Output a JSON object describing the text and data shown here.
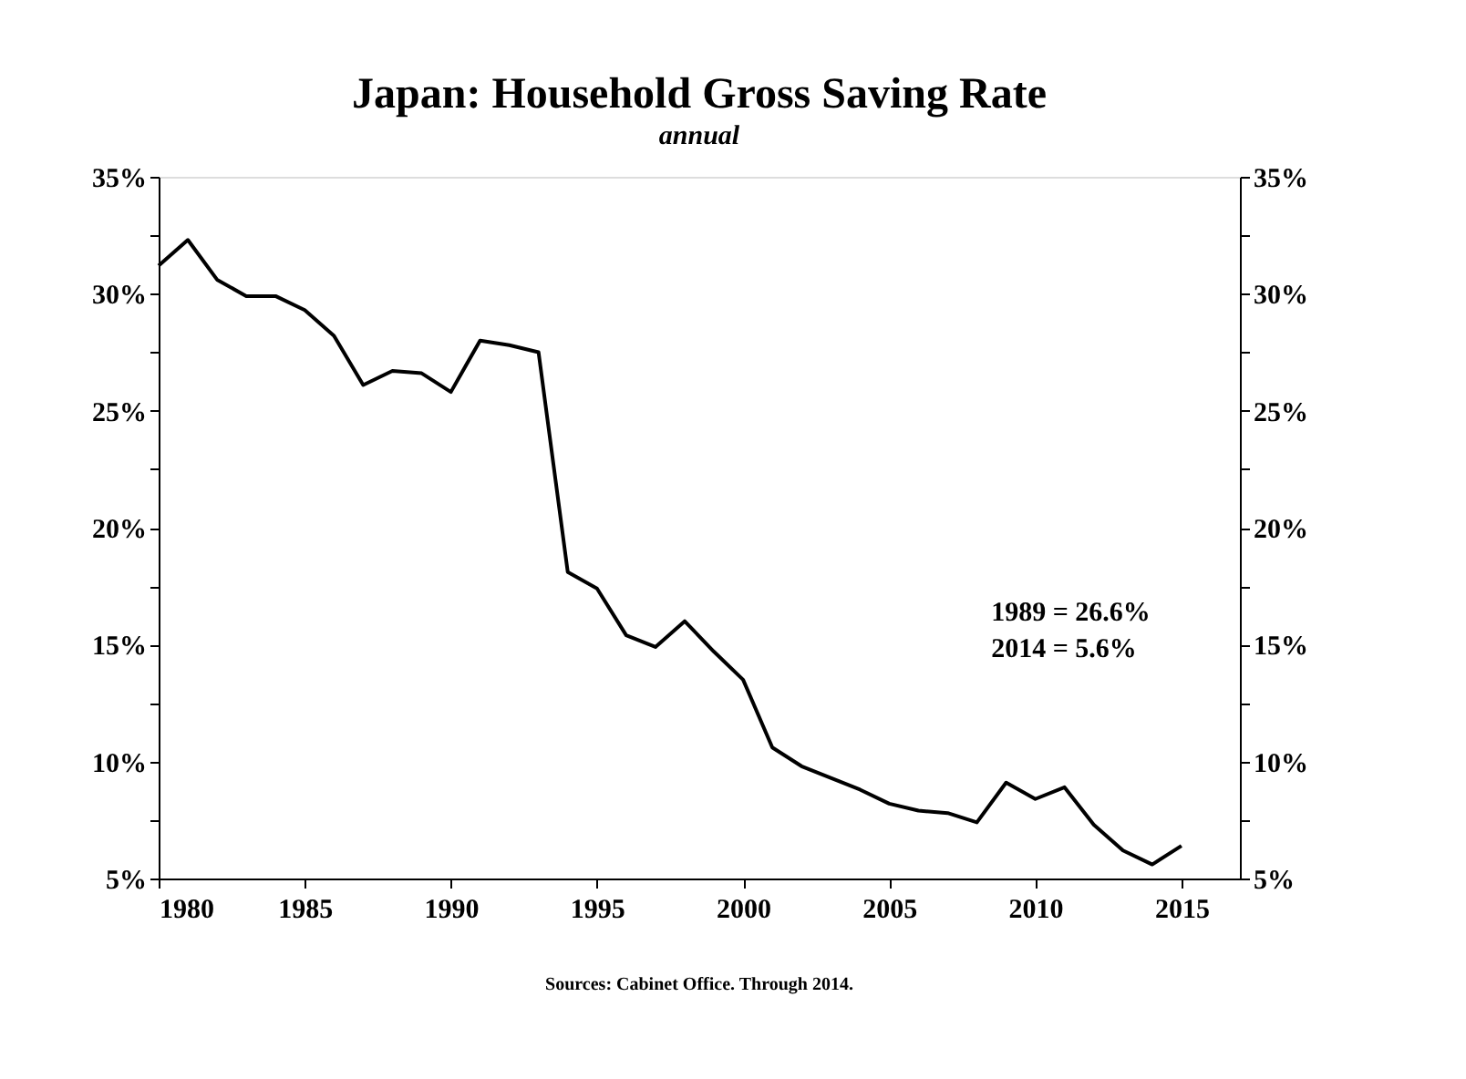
{
  "chart_data": {
    "type": "line",
    "title": "Japan: Household Gross Saving Rate",
    "subtitle": "annual",
    "x": [
      1980,
      1981,
      1982,
      1983,
      1984,
      1985,
      1986,
      1987,
      1988,
      1989,
      1990,
      1991,
      1992,
      1993,
      1994,
      1995,
      1996,
      1997,
      1998,
      1999,
      2000,
      2001,
      2002,
      2003,
      2004,
      2005,
      2006,
      2007,
      2008,
      2009,
      2010,
      2011,
      2012,
      2013,
      2014,
      2015
    ],
    "series": [
      {
        "color": "#000000",
        "values": [
          31.2,
          32.3,
          30.6,
          29.9,
          29.9,
          29.3,
          28.2,
          26.1,
          26.7,
          26.6,
          25.8,
          28.0,
          27.8,
          27.5,
          18.1,
          17.4,
          15.4,
          14.9,
          16.0,
          14.7,
          13.5,
          10.6,
          9.8,
          9.3,
          8.8,
          8.2,
          7.9,
          7.8,
          7.4,
          9.1,
          8.4,
          8.9,
          7.3,
          6.2,
          5.6,
          6.4
        ]
      }
    ],
    "xlim": [
      1980,
      2017
    ],
    "xticks": [
      1980,
      1985,
      1990,
      1995,
      2000,
      2005,
      2010,
      2015
    ],
    "ylim": [
      5,
      35
    ],
    "yticks": [
      {
        "value": 5,
        "label": "5%"
      },
      {
        "value": 7.5,
        "label": null
      },
      {
        "value": 10,
        "label": "10%"
      },
      {
        "value": 12.5,
        "label": null
      },
      {
        "value": 15,
        "label": "15%"
      },
      {
        "value": 17.5,
        "label": null
      },
      {
        "value": 20,
        "label": "20%"
      },
      {
        "value": 22.5,
        "label": null
      },
      {
        "value": 25,
        "label": "25%"
      },
      {
        "value": 27.5,
        "label": null
      },
      {
        "value": 30,
        "label": "30%"
      },
      {
        "value": 32.5,
        "label": null
      },
      {
        "value": 35,
        "label": "35%"
      }
    ],
    "y2lim": [
      5,
      35
    ],
    "y2ticks": [
      {
        "value": 5,
        "label": "5%"
      },
      {
        "value": 7.5,
        "label": null
      },
      {
        "value": 10,
        "label": "10%"
      },
      {
        "value": 12.5,
        "label": null
      },
      {
        "value": 15,
        "label": "15%"
      },
      {
        "value": 17.5,
        "label": null
      },
      {
        "value": 20,
        "label": "20%"
      },
      {
        "value": 22.5,
        "label": null
      },
      {
        "value": 25,
        "label": "25%"
      },
      {
        "value": 27.5,
        "label": null
      },
      {
        "value": 30,
        "label": "30%"
      },
      {
        "value": 32.5,
        "label": null
      },
      {
        "value": 35,
        "label": "35%"
      }
    ],
    "annotations": [
      "1989 = 26.6%",
      "2014 = 5.6%",
      "Sources:  Cabinet Office.  Through  2014."
    ],
    "grid": false,
    "legend": false,
    "marker": "none",
    "line_style": "solid"
  }
}
